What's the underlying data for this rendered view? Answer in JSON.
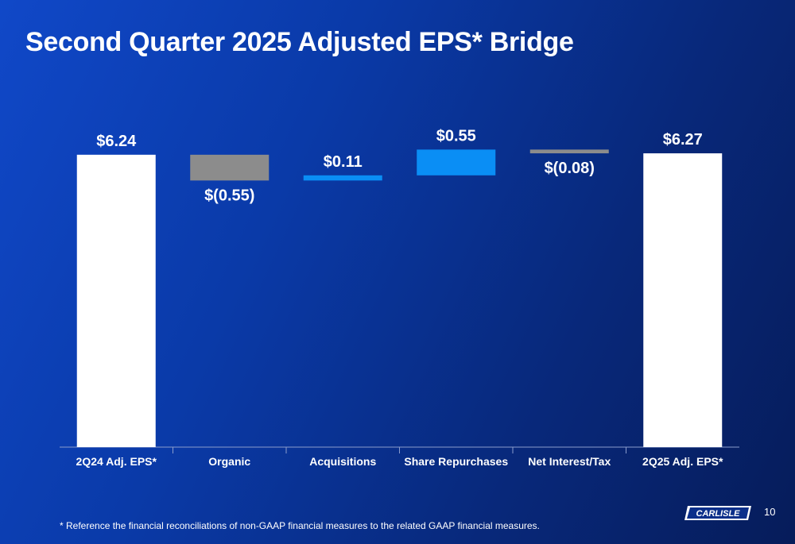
{
  "slide": {
    "title": "Second Quarter 2025 Adjusted EPS* Bridge",
    "footnote": "* Reference the financial reconciliations of non-GAAP financial measures to the related GAAP financial measures.",
    "page_number": "10",
    "logo_text": "CARLISLE"
  },
  "colors": {
    "total": "#ffffff",
    "negative": "#8c8c8c",
    "positive": "#0a8ef5",
    "text": "#ffffff",
    "axis": "#8a9ccc"
  },
  "chart_data": {
    "type": "bar",
    "subtype": "waterfall",
    "categories": [
      "2Q24 Adj. EPS*",
      "Organic",
      "Acquisitions",
      "Share Repurchases",
      "Net Interest/Tax",
      "2Q25 Adj. EPS*"
    ],
    "values": [
      6.24,
      -0.55,
      0.11,
      0.55,
      -0.08,
      6.27
    ],
    "kinds": [
      "total",
      "negative",
      "positive",
      "positive",
      "negative",
      "total"
    ],
    "data_labels": [
      "$6.24",
      "$(0.55)",
      "$0.11",
      "$0.55",
      "$(0.08)",
      "$6.27"
    ],
    "ylim": [
      0,
      6.7
    ],
    "grid": false,
    "legend": "none"
  }
}
